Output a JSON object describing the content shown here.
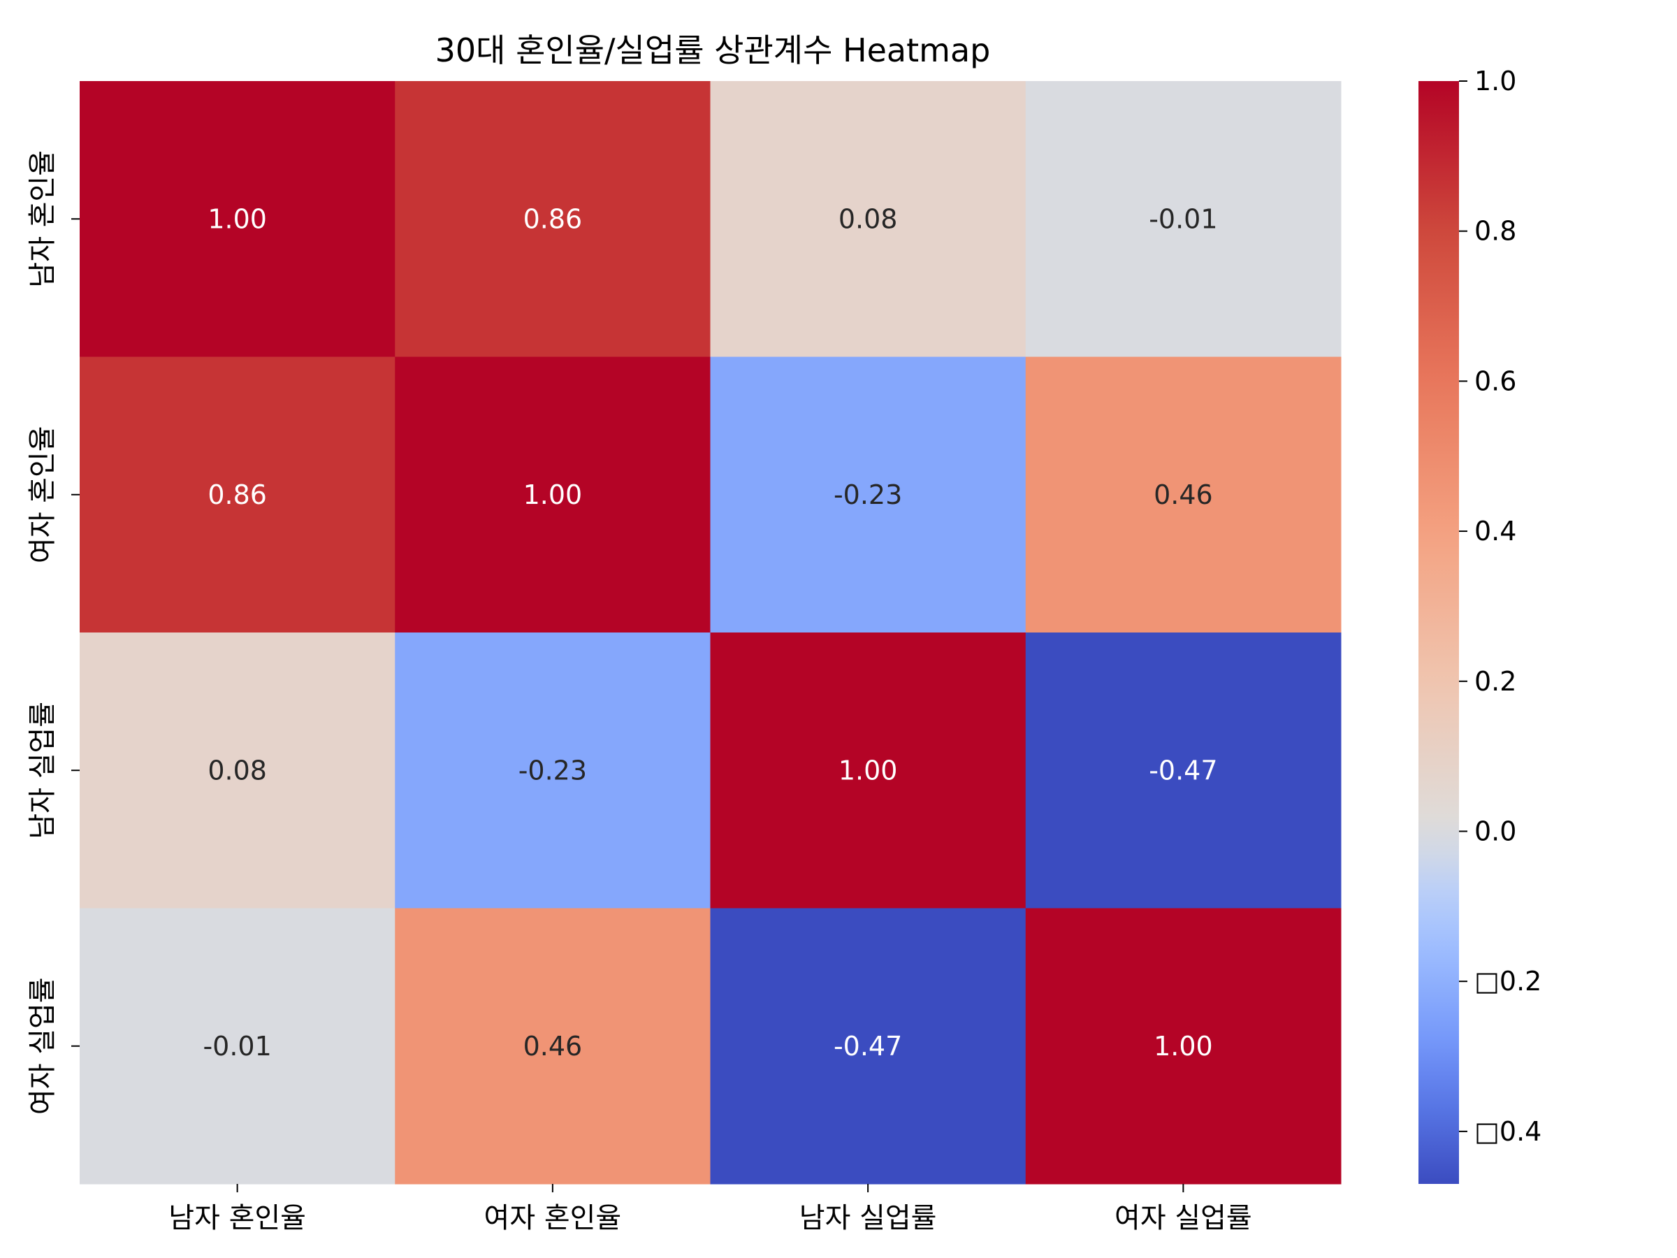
{
  "chart_data": {
    "type": "heatmap",
    "title": "30대 혼인율/실업률 상관계수 Heatmap",
    "row_labels": [
      "남자 혼인율",
      "여자 혼인율",
      "남자 실업률",
      "여자 실업률"
    ],
    "col_labels": [
      "남자 혼인율",
      "여자 혼인율",
      "남자 실업률",
      "여자 실업률"
    ],
    "values": [
      [
        1.0,
        0.86,
        0.08,
        -0.01
      ],
      [
        0.86,
        1.0,
        -0.23,
        0.46
      ],
      [
        0.08,
        -0.23,
        1.0,
        -0.47
      ],
      [
        -0.01,
        0.46,
        -0.47,
        1.0
      ]
    ],
    "annotations": [
      [
        "1.00",
        "0.86",
        "0.08",
        "-0.01"
      ],
      [
        "0.86",
        "1.00",
        "-0.23",
        "0.46"
      ],
      [
        "0.08",
        "-0.23",
        "1.00",
        "-0.47"
      ],
      [
        "-0.01",
        "0.46",
        "-0.47",
        "1.00"
      ]
    ],
    "colormap": "coolwarm",
    "vmin": -0.47,
    "vmax": 1.0,
    "colorbar": {
      "ticks": [
        1.0,
        0.8,
        0.6,
        0.4,
        0.2,
        0.0,
        -0.2,
        -0.4
      ],
      "tick_labels": [
        "1.0",
        "0.8",
        "0.6",
        "0.4",
        "0.2",
        "0.0",
        "□0.2",
        "□0.4"
      ],
      "position": "right"
    }
  }
}
